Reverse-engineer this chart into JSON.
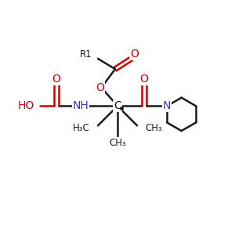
{
  "bg_color": "#ffffff",
  "black": "#1a1a1a",
  "red": "#cc0000",
  "blue": "#3333cc",
  "bond_lw": 1.8,
  "font_size_atom": 10,
  "font_size_small": 8.5,
  "xlim": [
    0,
    10
  ],
  "ylim": [
    0,
    10
  ]
}
